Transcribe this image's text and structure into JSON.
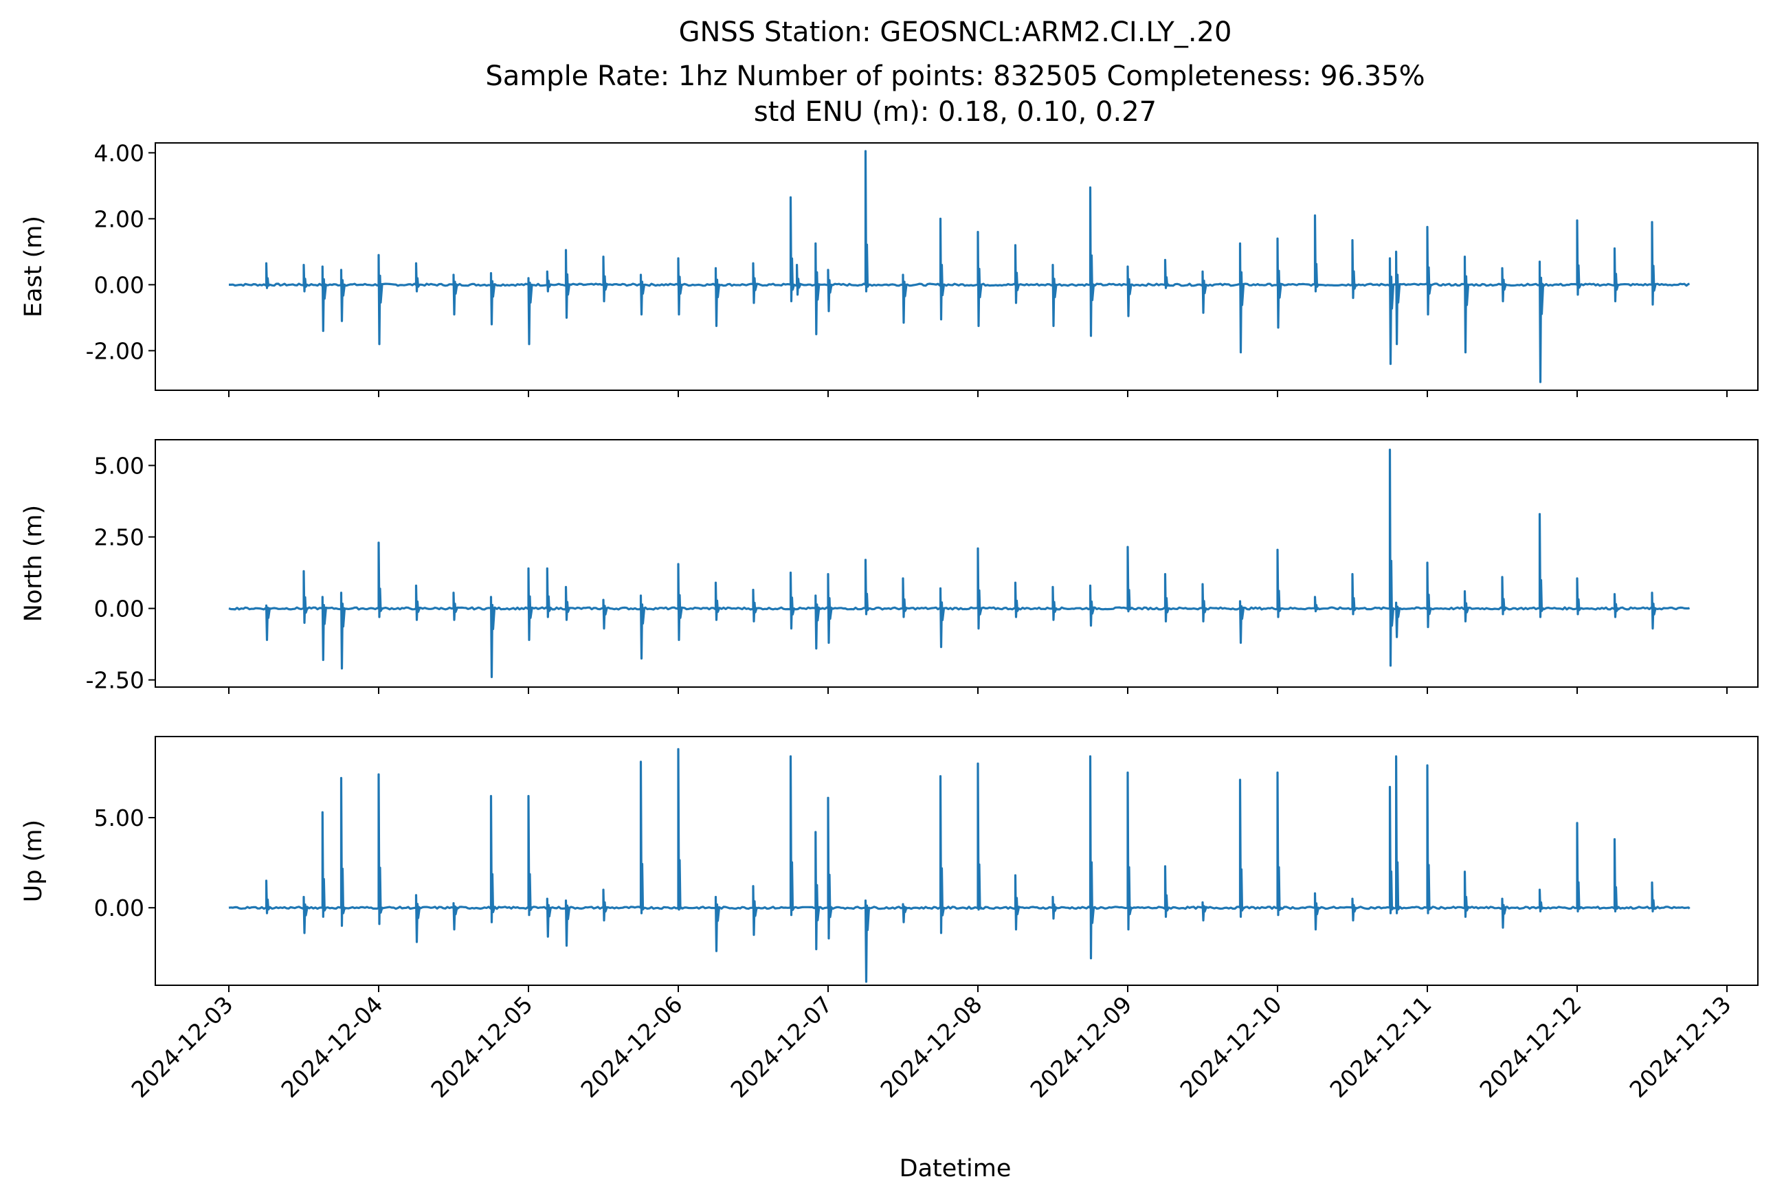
{
  "chart_data": {
    "type": "line",
    "title_lines": [
      "GNSS Station: GEOSNCL:ARM2.CI.LY_.20",
      "Sample Rate: 1hz   Number of points: 832505    Completeness:  96.35%",
      "std ENU (m):  0.18, 0.10, 0.27"
    ],
    "xlabel": "Datetime",
    "x_ticks": [
      "2024-12-03",
      "2024-12-04",
      "2024-12-05",
      "2024-12-06",
      "2024-12-07",
      "2024-12-08",
      "2024-12-09",
      "2024-12-10",
      "2024-12-11",
      "2024-12-12",
      "2024-12-13"
    ],
    "x_range": [
      "2024-12-03T00:00",
      "2024-12-12T18:00"
    ],
    "line_color": "#1f77b4",
    "grid": false,
    "panels": [
      {
        "ylabel": "East (m)",
        "ylim": [
          -3.2,
          4.3
        ],
        "y_ticks": [
          4.0,
          2.0,
          0.0,
          -2.0
        ],
        "y_tick_labels": [
          "4.00",
          "2.00",
          "0.00",
          "-2.00"
        ],
        "series": [
          {
            "spikes": [
              {
                "x": "2024-12-03T06:00",
                "hi": 0.65,
                "lo": -0.1
              },
              {
                "x": "2024-12-03T12:00",
                "hi": 0.6,
                "lo": -0.2
              },
              {
                "x": "2024-12-03T15:00",
                "hi": 0.55,
                "lo": -1.4
              },
              {
                "x": "2024-12-03T18:00",
                "hi": 0.45,
                "lo": -1.1
              },
              {
                "x": "2024-12-04T00:00",
                "hi": 0.9,
                "lo": -1.8
              },
              {
                "x": "2024-12-04T06:00",
                "hi": 0.65,
                "lo": -0.2
              },
              {
                "x": "2024-12-04T12:00",
                "hi": 0.3,
                "lo": -0.9
              },
              {
                "x": "2024-12-04T18:00",
                "hi": 0.35,
                "lo": -1.2
              },
              {
                "x": "2024-12-05T00:00",
                "hi": 0.2,
                "lo": -1.8
              },
              {
                "x": "2024-12-05T03:00",
                "hi": 0.4,
                "lo": -0.2
              },
              {
                "x": "2024-12-05T06:00",
                "hi": 1.05,
                "lo": -1.0
              },
              {
                "x": "2024-12-05T12:00",
                "hi": 0.85,
                "lo": -0.5
              },
              {
                "x": "2024-12-05T18:00",
                "hi": 0.3,
                "lo": -0.9
              },
              {
                "x": "2024-12-06T00:00",
                "hi": 0.8,
                "lo": -0.9
              },
              {
                "x": "2024-12-06T06:00",
                "hi": 0.5,
                "lo": -1.25
              },
              {
                "x": "2024-12-06T12:00",
                "hi": 0.65,
                "lo": -0.55
              },
              {
                "x": "2024-12-06T18:00",
                "hi": 2.65,
                "lo": -0.5
              },
              {
                "x": "2024-12-06T19:00",
                "hi": 0.6,
                "lo": -0.3
              },
              {
                "x": "2024-12-06T22:00",
                "hi": 1.25,
                "lo": -1.5
              },
              {
                "x": "2024-12-07T00:00",
                "hi": 0.45,
                "lo": -0.8
              },
              {
                "x": "2024-12-07T06:00",
                "hi": 4.05,
                "lo": -0.2
              },
              {
                "x": "2024-12-07T12:00",
                "hi": 0.3,
                "lo": -1.15
              },
              {
                "x": "2024-12-07T18:00",
                "hi": 2.0,
                "lo": -1.05
              },
              {
                "x": "2024-12-08T00:00",
                "hi": 1.6,
                "lo": -1.25
              },
              {
                "x": "2024-12-08T06:00",
                "hi": 1.2,
                "lo": -0.55
              },
              {
                "x": "2024-12-08T12:00",
                "hi": 0.6,
                "lo": -1.25
              },
              {
                "x": "2024-12-08T18:00",
                "hi": 2.95,
                "lo": -1.55
              },
              {
                "x": "2024-12-09T00:00",
                "hi": 0.55,
                "lo": -0.95
              },
              {
                "x": "2024-12-09T06:00",
                "hi": 0.75,
                "lo": -0.1
              },
              {
                "x": "2024-12-09T12:00",
                "hi": 0.4,
                "lo": -0.85
              },
              {
                "x": "2024-12-09T18:00",
                "hi": 1.25,
                "lo": -2.05
              },
              {
                "x": "2024-12-10T00:00",
                "hi": 1.4,
                "lo": -1.3
              },
              {
                "x": "2024-12-10T06:00",
                "hi": 2.1,
                "lo": -0.2
              },
              {
                "x": "2024-12-10T12:00",
                "hi": 1.35,
                "lo": -0.4
              },
              {
                "x": "2024-12-10T18:00",
                "hi": 0.8,
                "lo": -2.4
              },
              {
                "x": "2024-12-10T19:00",
                "hi": 1.0,
                "lo": -1.8
              },
              {
                "x": "2024-12-11T00:00",
                "hi": 1.75,
                "lo": -0.9
              },
              {
                "x": "2024-12-11T06:00",
                "hi": 0.85,
                "lo": -2.05
              },
              {
                "x": "2024-12-11T12:00",
                "hi": 0.5,
                "lo": -0.5
              },
              {
                "x": "2024-12-11T18:00",
                "hi": 0.7,
                "lo": -2.95
              },
              {
                "x": "2024-12-12T00:00",
                "hi": 1.95,
                "lo": -0.3
              },
              {
                "x": "2024-12-12T06:00",
                "hi": 1.1,
                "lo": -0.5
              },
              {
                "x": "2024-12-12T12:00",
                "hi": 1.9,
                "lo": -0.6
              }
            ]
          }
        ]
      },
      {
        "ylabel": "North (m)",
        "ylim": [
          -2.75,
          5.9
        ],
        "y_ticks": [
          5.0,
          2.5,
          0.0,
          -2.5
        ],
        "y_tick_labels": [
          "5.00",
          "2.50",
          "0.00",
          "-2.50"
        ],
        "series": [
          {
            "spikes": [
              {
                "x": "2024-12-03T06:00",
                "hi": 0.1,
                "lo": -1.1
              },
              {
                "x": "2024-12-03T12:00",
                "hi": 1.3,
                "lo": -0.5
              },
              {
                "x": "2024-12-03T15:00",
                "hi": 0.4,
                "lo": -1.8
              },
              {
                "x": "2024-12-03T18:00",
                "hi": 0.55,
                "lo": -2.1
              },
              {
                "x": "2024-12-04T00:00",
                "hi": 2.3,
                "lo": -0.3
              },
              {
                "x": "2024-12-04T06:00",
                "hi": 0.8,
                "lo": -0.4
              },
              {
                "x": "2024-12-04T12:00",
                "hi": 0.55,
                "lo": -0.4
              },
              {
                "x": "2024-12-04T18:00",
                "hi": 0.4,
                "lo": -2.4
              },
              {
                "x": "2024-12-05T00:00",
                "hi": 1.4,
                "lo": -1.1
              },
              {
                "x": "2024-12-05T03:00",
                "hi": 1.4,
                "lo": -0.3
              },
              {
                "x": "2024-12-05T06:00",
                "hi": 0.75,
                "lo": -0.4
              },
              {
                "x": "2024-12-05T12:00",
                "hi": 0.3,
                "lo": -0.7
              },
              {
                "x": "2024-12-05T18:00",
                "hi": 0.45,
                "lo": -1.75
              },
              {
                "x": "2024-12-06T00:00",
                "hi": 1.55,
                "lo": -1.1
              },
              {
                "x": "2024-12-06T06:00",
                "hi": 0.9,
                "lo": -0.4
              },
              {
                "x": "2024-12-06T12:00",
                "hi": 0.65,
                "lo": -0.45
              },
              {
                "x": "2024-12-06T18:00",
                "hi": 1.25,
                "lo": -0.7
              },
              {
                "x": "2024-12-06T22:00",
                "hi": 0.45,
                "lo": -1.4
              },
              {
                "x": "2024-12-07T00:00",
                "hi": 1.2,
                "lo": -1.2
              },
              {
                "x": "2024-12-07T06:00",
                "hi": 1.7,
                "lo": -0.2
              },
              {
                "x": "2024-12-07T12:00",
                "hi": 1.05,
                "lo": -0.3
              },
              {
                "x": "2024-12-07T18:00",
                "hi": 0.7,
                "lo": -1.35
              },
              {
                "x": "2024-12-08T00:00",
                "hi": 2.1,
                "lo": -0.7
              },
              {
                "x": "2024-12-08T06:00",
                "hi": 0.9,
                "lo": -0.3
              },
              {
                "x": "2024-12-08T12:00",
                "hi": 0.75,
                "lo": -0.4
              },
              {
                "x": "2024-12-08T18:00",
                "hi": 0.8,
                "lo": -0.6
              },
              {
                "x": "2024-12-09T00:00",
                "hi": 2.15,
                "lo": -0.1
              },
              {
                "x": "2024-12-09T06:00",
                "hi": 1.2,
                "lo": -0.45
              },
              {
                "x": "2024-12-09T12:00",
                "hi": 0.85,
                "lo": -0.45
              },
              {
                "x": "2024-12-09T18:00",
                "hi": 0.25,
                "lo": -1.2
              },
              {
                "x": "2024-12-10T00:00",
                "hi": 2.05,
                "lo": -0.3
              },
              {
                "x": "2024-12-10T06:00",
                "hi": 0.4,
                "lo": -0.1
              },
              {
                "x": "2024-12-10T12:00",
                "hi": 1.2,
                "lo": -0.2
              },
              {
                "x": "2024-12-10T18:00",
                "hi": 5.55,
                "lo": -2.0
              },
              {
                "x": "2024-12-10T19:00",
                "hi": 0.2,
                "lo": -1.0
              },
              {
                "x": "2024-12-11T00:00",
                "hi": 1.6,
                "lo": -0.65
              },
              {
                "x": "2024-12-11T06:00",
                "hi": 0.6,
                "lo": -0.45
              },
              {
                "x": "2024-12-11T12:00",
                "hi": 1.1,
                "lo": -0.2
              },
              {
                "x": "2024-12-11T18:00",
                "hi": 3.3,
                "lo": -0.3
              },
              {
                "x": "2024-12-12T00:00",
                "hi": 1.05,
                "lo": -0.2
              },
              {
                "x": "2024-12-12T06:00",
                "hi": 0.5,
                "lo": -0.3
              },
              {
                "x": "2024-12-12T12:00",
                "hi": 0.55,
                "lo": -0.7
              }
            ]
          }
        ]
      },
      {
        "ylabel": "Up (m)",
        "ylim": [
          -4.3,
          9.5
        ],
        "y_ticks": [
          5.0,
          0.0
        ],
        "y_tick_labels": [
          "5.00",
          "0.00"
        ],
        "series": [
          {
            "spikes": [
              {
                "x": "2024-12-03T06:00",
                "hi": 1.5,
                "lo": -0.3
              },
              {
                "x": "2024-12-03T12:00",
                "hi": 0.6,
                "lo": -1.4
              },
              {
                "x": "2024-12-03T15:00",
                "hi": 5.3,
                "lo": -0.5
              },
              {
                "x": "2024-12-03T18:00",
                "hi": 7.2,
                "lo": -1.0
              },
              {
                "x": "2024-12-04T00:00",
                "hi": 7.4,
                "lo": -0.9
              },
              {
                "x": "2024-12-04T06:00",
                "hi": 0.7,
                "lo": -1.9
              },
              {
                "x": "2024-12-04T12:00",
                "hi": 0.25,
                "lo": -1.2
              },
              {
                "x": "2024-12-04T18:00",
                "hi": 6.2,
                "lo": -0.8
              },
              {
                "x": "2024-12-05T00:00",
                "hi": 6.2,
                "lo": -0.4
              },
              {
                "x": "2024-12-05T03:00",
                "hi": 0.5,
                "lo": -1.6
              },
              {
                "x": "2024-12-05T06:00",
                "hi": 0.4,
                "lo": -2.1
              },
              {
                "x": "2024-12-05T12:00",
                "hi": 1.0,
                "lo": -0.7
              },
              {
                "x": "2024-12-05T18:00",
                "hi": 8.1,
                "lo": -0.3
              },
              {
                "x": "2024-12-06T00:00",
                "hi": 8.8,
                "lo": -0.1
              },
              {
                "x": "2024-12-06T06:00",
                "hi": 0.6,
                "lo": -2.4
              },
              {
                "x": "2024-12-06T12:00",
                "hi": 1.2,
                "lo": -1.5
              },
              {
                "x": "2024-12-06T18:00",
                "hi": 8.4,
                "lo": -0.4
              },
              {
                "x": "2024-12-06T22:00",
                "hi": 4.2,
                "lo": -2.3
              },
              {
                "x": "2024-12-07T00:00",
                "hi": 6.1,
                "lo": -1.7
              },
              {
                "x": "2024-12-07T06:00",
                "hi": 0.4,
                "lo": -4.1
              },
              {
                "x": "2024-12-07T12:00",
                "hi": 0.2,
                "lo": -0.8
              },
              {
                "x": "2024-12-07T18:00",
                "hi": 7.3,
                "lo": -1.4
              },
              {
                "x": "2024-12-08T00:00",
                "hi": 8.0,
                "lo": -0.1
              },
              {
                "x": "2024-12-08T06:00",
                "hi": 1.8,
                "lo": -1.2
              },
              {
                "x": "2024-12-08T12:00",
                "hi": 0.6,
                "lo": -0.6
              },
              {
                "x": "2024-12-08T18:00",
                "hi": 8.4,
                "lo": -2.8
              },
              {
                "x": "2024-12-09T00:00",
                "hi": 7.5,
                "lo": -1.2
              },
              {
                "x": "2024-12-09T06:00",
                "hi": 2.3,
                "lo": -0.5
              },
              {
                "x": "2024-12-09T12:00",
                "hi": 0.3,
                "lo": -0.7
              },
              {
                "x": "2024-12-09T18:00",
                "hi": 7.1,
                "lo": -0.5
              },
              {
                "x": "2024-12-10T00:00",
                "hi": 7.5,
                "lo": -0.4
              },
              {
                "x": "2024-12-10T06:00",
                "hi": 0.8,
                "lo": -1.2
              },
              {
                "x": "2024-12-10T12:00",
                "hi": 0.5,
                "lo": -0.7
              },
              {
                "x": "2024-12-10T18:00",
                "hi": 6.7,
                "lo": -0.3
              },
              {
                "x": "2024-12-10T19:00",
                "hi": 8.4,
                "lo": -0.3
              },
              {
                "x": "2024-12-11T00:00",
                "hi": 7.9,
                "lo": -0.3
              },
              {
                "x": "2024-12-11T06:00",
                "hi": 2.0,
                "lo": -0.5
              },
              {
                "x": "2024-12-11T12:00",
                "hi": 0.5,
                "lo": -1.1
              },
              {
                "x": "2024-12-11T18:00",
                "hi": 1.0,
                "lo": -0.2
              },
              {
                "x": "2024-12-12T00:00",
                "hi": 4.7,
                "lo": -0.2
              },
              {
                "x": "2024-12-12T06:00",
                "hi": 3.8,
                "lo": -0.2
              },
              {
                "x": "2024-12-12T12:00",
                "hi": 1.4,
                "lo": -0.2
              }
            ]
          }
        ]
      }
    ]
  }
}
